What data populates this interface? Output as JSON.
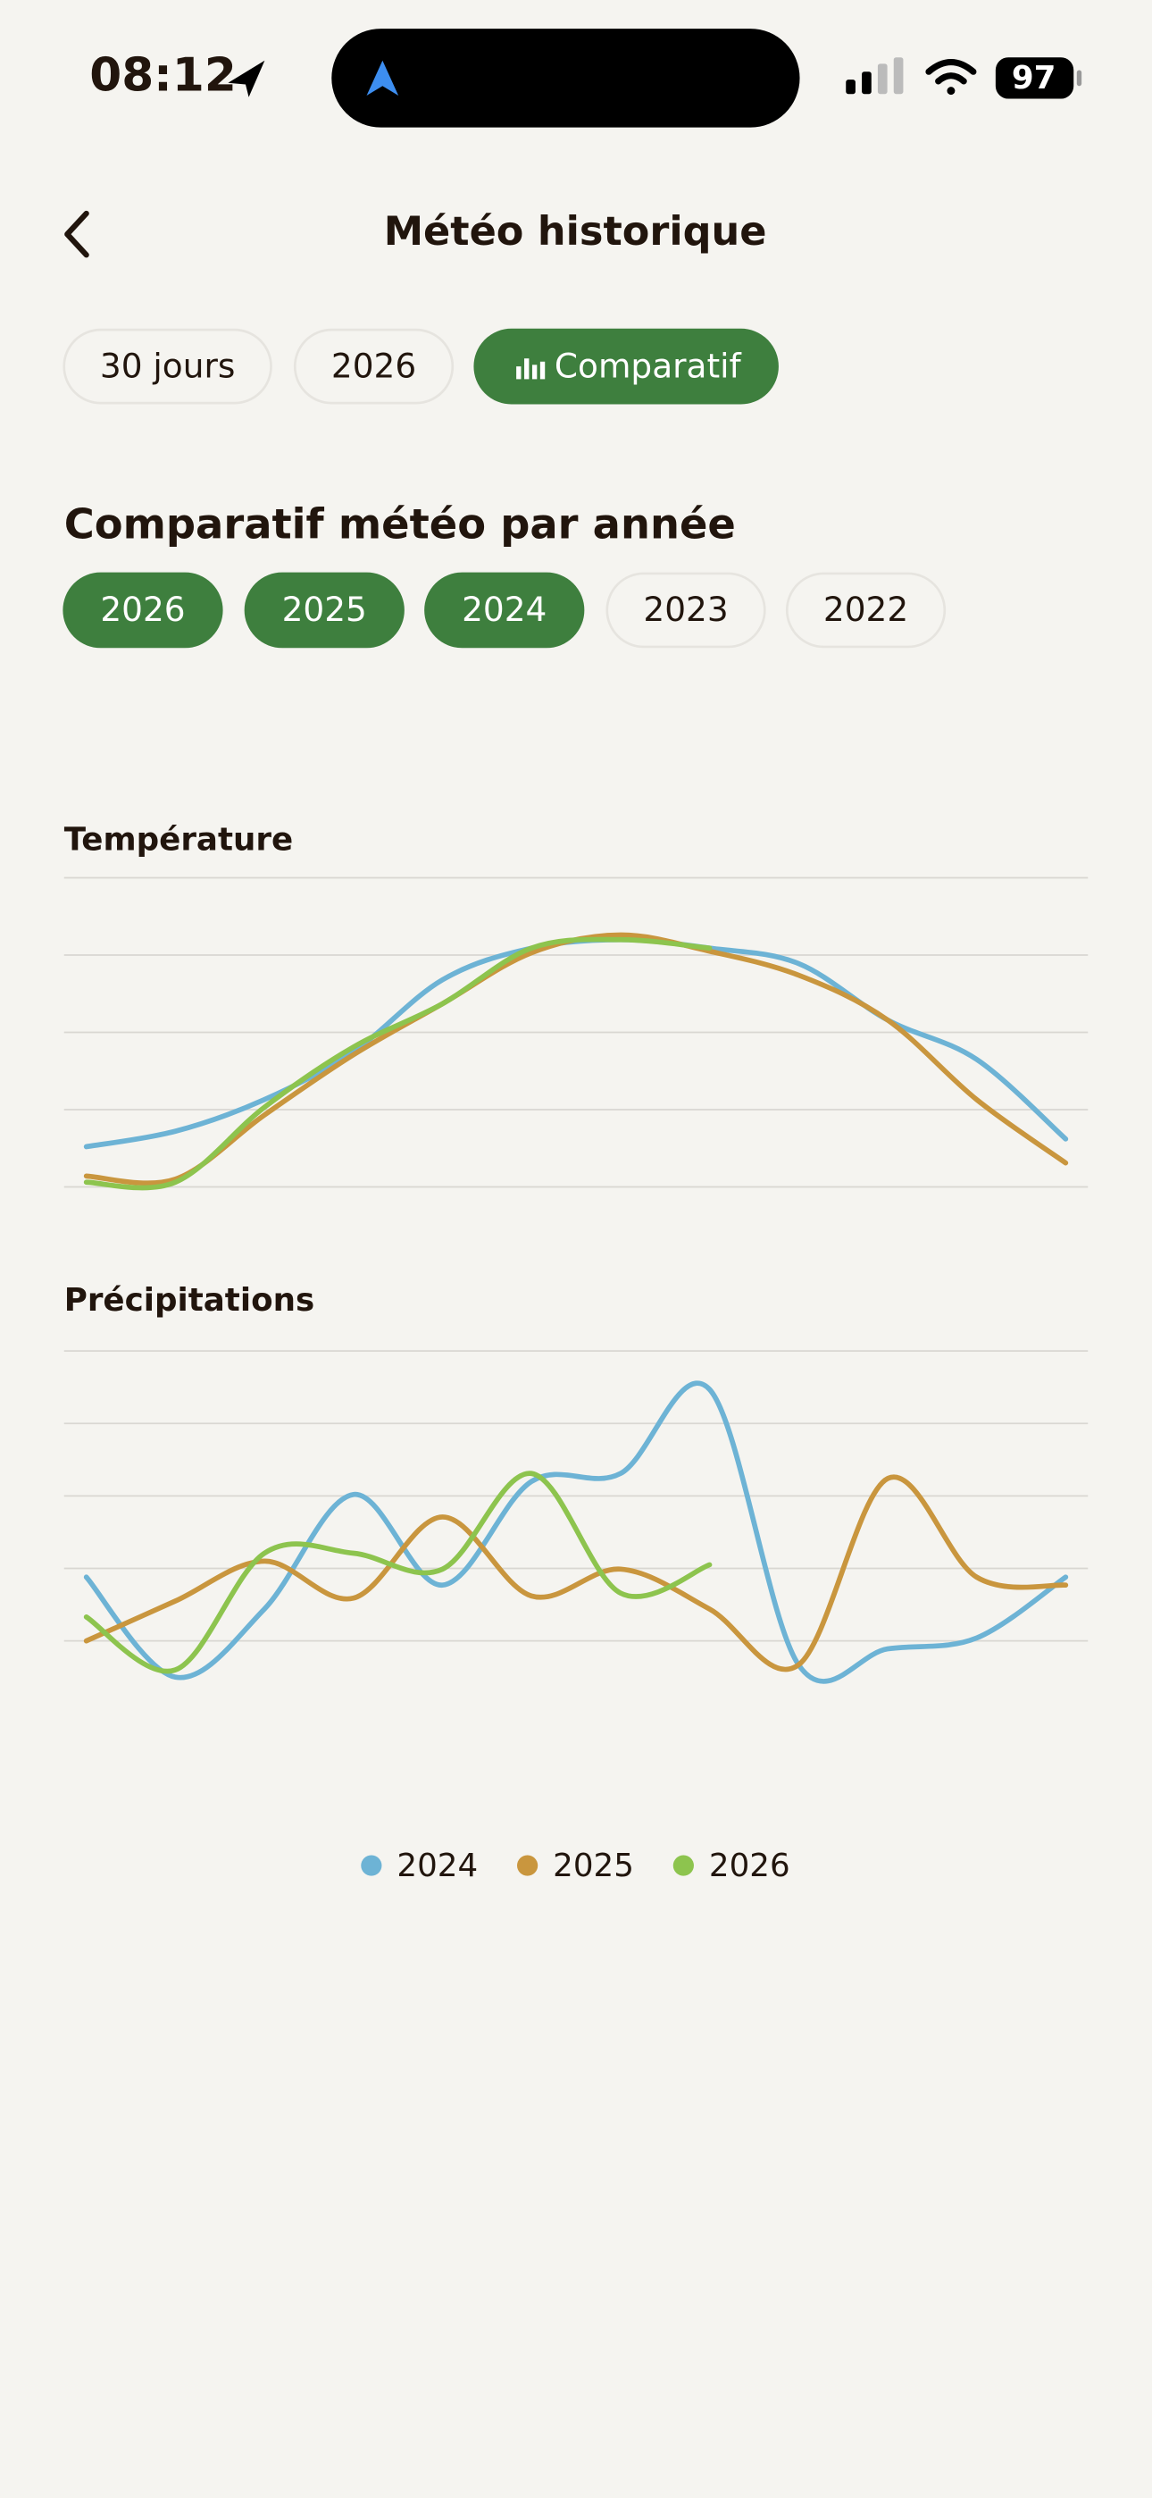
{
  "status_bar": {
    "time": "08:12",
    "battery": "97"
  },
  "header": {
    "title": "Météo historique"
  },
  "tabs": {
    "items": [
      "30 jours",
      "2026",
      "Comparatif"
    ],
    "active": 2
  },
  "section": {
    "title": "Comparatif météo par année"
  },
  "year_chips": [
    {
      "label": "2026",
      "selected": true
    },
    {
      "label": "2025",
      "selected": true
    },
    {
      "label": "2024",
      "selected": true
    },
    {
      "label": "2023",
      "selected": false
    },
    {
      "label": "2022",
      "selected": false
    }
  ],
  "chart_data": [
    {
      "type": "line",
      "title": "Température",
      "x": [
        1,
        2,
        3,
        4,
        5,
        6,
        7,
        8,
        9,
        10,
        11,
        12
      ],
      "xlim": [
        1,
        12
      ],
      "ylim": [
        0,
        4
      ],
      "yticks": [
        0,
        1,
        2,
        3,
        4
      ],
      "grid": true,
      "series": [
        {
          "name": "2024",
          "color": "#6db3d5",
          "values": [
            0.52,
            0.72,
            1.13,
            1.75,
            2.68,
            3.09,
            3.2,
            3.09,
            2.89,
            2.16,
            1.65,
            0.62
          ]
        },
        {
          "name": "2025",
          "color": "#c9963e",
          "values": [
            0.14,
            0.1,
            0.93,
            1.71,
            2.37,
            3.03,
            3.26,
            3.05,
            2.74,
            2.16,
            1.13,
            0.31
          ]
        },
        {
          "name": "2026",
          "color": "#8dc44e",
          "values": [
            0.06,
            0.06,
            1.03,
            1.81,
            2.37,
            3.09,
            3.2,
            3.09,
            null,
            null,
            null,
            null
          ]
        }
      ]
    },
    {
      "type": "line",
      "title": "Précipitations",
      "x": [
        1,
        2,
        3,
        4,
        5,
        6,
        7,
        8,
        9,
        10,
        11,
        12
      ],
      "xlim": [
        1,
        12
      ],
      "ylim": [
        -0.6,
        4
      ],
      "yticks": [
        0,
        1,
        2,
        3,
        4
      ],
      "grid": true,
      "series": [
        {
          "name": "2024",
          "color": "#6db3d5",
          "values": [
            0.88,
            -0.5,
            0.44,
            2.02,
            0.77,
            2.2,
            2.31,
            3.47,
            -0.33,
            -0.11,
            0.04,
            0.88
          ]
        },
        {
          "name": "2025",
          "color": "#c9963e",
          "values": [
            0,
            0.55,
            1.1,
            0.59,
            1.71,
            0.62,
            0.99,
            0.44,
            -0.33,
            2.24,
            0.88,
            0.77
          ]
        },
        {
          "name": "2026",
          "color": "#8dc44e",
          "values": [
            0.33,
            -0.4,
            1.21,
            1.21,
            0.99,
            2.31,
            0.66,
            1.05,
            null,
            null,
            null,
            null
          ]
        }
      ]
    }
  ]
}
